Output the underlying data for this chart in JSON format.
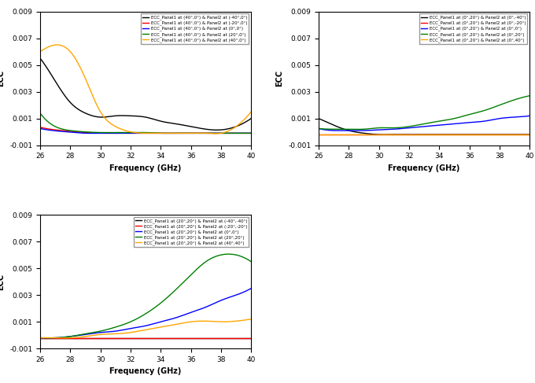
{
  "freq_dense": 200,
  "ylim": [
    -0.001,
    0.009
  ],
  "yticks": [
    -0.001,
    0.001,
    0.003,
    0.005,
    0.007,
    0.009
  ],
  "xlim": [
    26,
    40
  ],
  "xticks": [
    26,
    28,
    30,
    32,
    34,
    36,
    38,
    40
  ],
  "xlabel": "Frequency (GHz)",
  "ylabel": "ECC",
  "plot1": {
    "legend_labels": [
      "ECC_Panel1 at (40°,0°) & Panel2 at (-40°,0°)",
      "ECC_Panel1 at (40°,0°) & Panel2 at (-20°,0°)",
      "ECC_Panel1 at (40°,0°) & Panel2 at (0°,0°)",
      "ECC_Panel1 at (40°,0°) & Panel2 at (20°,0°)",
      "ECC_Panel1 at (40°,0°) & Panel2 at (40°,0°)"
    ],
    "colors": [
      "black",
      "red",
      "blue",
      "green",
      "orange"
    ],
    "knots_x": [
      [
        26,
        27,
        28,
        29,
        30,
        31,
        32,
        33,
        34,
        35,
        36,
        37,
        38,
        39,
        40
      ],
      [
        26,
        27,
        28,
        29,
        30,
        31,
        32,
        33,
        34,
        35,
        36,
        37,
        38,
        39,
        40
      ],
      [
        26,
        27,
        28,
        29,
        30,
        31,
        32,
        33,
        34,
        35,
        36,
        37,
        38,
        39,
        40
      ],
      [
        26,
        27,
        28,
        29,
        30,
        31,
        32,
        33,
        34,
        35,
        36,
        37,
        38,
        39,
        40
      ],
      [
        26,
        27,
        28,
        29,
        30,
        31,
        32,
        33,
        34,
        35,
        36,
        37,
        38,
        39,
        40
      ]
    ],
    "knots_y": [
      [
        0.0055,
        0.0038,
        0.0022,
        0.0014,
        0.0011,
        0.0012,
        0.0012,
        0.0011,
        0.0008,
        0.0006,
        0.0004,
        0.0002,
        0.00015,
        0.0004,
        0.001
      ],
      [
        0.00035,
        0.00015,
        5e-05,
        -5e-05,
        -0.0001,
        -0.0001,
        -0.0001,
        -0.0001,
        -0.0001,
        -0.0001,
        -0.0001,
        -0.0001,
        -0.0001,
        -0.0001,
        -0.0001
      ],
      [
        0.00025,
        8e-05,
        -2e-05,
        -0.0001,
        -0.0001,
        -0.0001,
        -0.0001,
        -0.0001,
        -0.0001,
        -0.0001,
        -0.0001,
        -0.0001,
        -0.0001,
        -0.0001,
        -0.0001
      ],
      [
        0.0014,
        0.0004,
        0.0001,
        0.0,
        -5e-05,
        -5e-05,
        -5e-05,
        -5e-05,
        -0.0001,
        -0.0001,
        -0.0001,
        -0.0001,
        -0.0001,
        -0.0001,
        -0.0001
      ],
      [
        0.006,
        0.0065,
        0.006,
        0.004,
        0.0015,
        0.0004,
        0.0,
        -0.0001,
        -0.0001,
        -0.0001,
        -0.0001,
        -0.0001,
        -0.0001,
        0.0004,
        0.0015
      ]
    ]
  },
  "plot2": {
    "legend_labels": [
      "ECC_Panel1 at (0°,20°) & Panel2 at (0°,-40°)",
      "ECC_Panel1 at (0°,20°) & Panel2 at (0°,-20°)",
      "ECC_Panel1 at (0°,20°) & Panel2 at (0°,0°)",
      "ECC_Panel1 at (0°,20°) & Panel2 at (0°,20°)",
      "ECC_Panel1 at (0°,20°) & Panel2 at (0°,40°)"
    ],
    "colors": [
      "black",
      "red",
      "blue",
      "green",
      "orange"
    ],
    "knots_x": [
      [
        26,
        27,
        28,
        29,
        30,
        31,
        32,
        33,
        34,
        35,
        36,
        37,
        38,
        39,
        40
      ],
      [
        26,
        27,
        28,
        29,
        30,
        31,
        32,
        33,
        34,
        35,
        36,
        37,
        38,
        39,
        40
      ],
      [
        26,
        27,
        28,
        29,
        30,
        31,
        32,
        33,
        34,
        35,
        36,
        37,
        38,
        39,
        40
      ],
      [
        26,
        27,
        28,
        29,
        30,
        31,
        32,
        33,
        34,
        35,
        36,
        37,
        38,
        39,
        40
      ],
      [
        26,
        27,
        28,
        29,
        30,
        31,
        32,
        33,
        34,
        35,
        36,
        37,
        38,
        39,
        40
      ]
    ],
    "knots_y": [
      [
        0.001,
        0.0005,
        0.0001,
        -0.0001,
        -0.0002,
        -0.0002,
        -0.0002,
        -0.0002,
        -0.0002,
        -0.0002,
        -0.0002,
        -0.0002,
        -0.0002,
        -0.0002,
        -0.0002
      ],
      [
        -0.0002,
        -0.0002,
        -0.0002,
        -0.0002,
        -0.0002,
        -0.0002,
        -0.0002,
        -0.0002,
        -0.0002,
        -0.0002,
        -0.0002,
        -0.0002,
        -0.0002,
        -0.0002,
        -0.0002
      ],
      [
        0.00025,
        0.0001,
        0.0001,
        0.0001,
        0.00015,
        0.0002,
        0.0003,
        0.0004,
        0.0005,
        0.0006,
        0.0007,
        0.0008,
        0.001,
        0.0011,
        0.0012
      ],
      [
        0.00025,
        0.0002,
        0.0002,
        0.0002,
        0.0003,
        0.0003,
        0.0004,
        0.0006,
        0.0008,
        0.001,
        0.0013,
        0.0016,
        0.002,
        0.0024,
        0.0027
      ],
      [
        -0.0002,
        -0.0002,
        -0.0002,
        -0.0002,
        -0.0002,
        -0.0002,
        -0.0002,
        -0.0002,
        -0.0002,
        -0.0002,
        -0.0002,
        -0.0002,
        -0.0002,
        -0.0002,
        -0.0002
      ]
    ]
  },
  "plot3": {
    "legend_labels": [
      "ECC_Panel1 at (20°,20°) & Panel2 at (-40°,-40°)",
      "ECC_Panel1 at (20°,20°) & Panel2 at (-20°,-20°)",
      "ECC_Panel1 at (20°,20°) & Panel2 at (0°,0°)",
      "ECC_Panel1 at (20°,20°) & Panel2 at (20°,20°)",
      "ECC_Panel1 at (20°,20°) & Panel2 at (40°,40°)"
    ],
    "colors": [
      "black",
      "red",
      "blue",
      "green",
      "orange"
    ],
    "knots_x": [
      [
        26,
        27,
        28,
        29,
        30,
        31,
        32,
        33,
        34,
        35,
        36,
        37,
        38,
        39,
        40
      ],
      [
        26,
        27,
        28,
        29,
        30,
        31,
        32,
        33,
        34,
        35,
        36,
        37,
        38,
        39,
        40
      ],
      [
        26,
        27,
        28,
        29,
        30,
        31,
        32,
        33,
        34,
        35,
        36,
        37,
        38,
        39,
        40
      ],
      [
        26,
        27,
        28,
        29,
        30,
        31,
        32,
        33,
        34,
        35,
        36,
        37,
        38,
        39,
        40
      ],
      [
        26,
        27,
        28,
        29,
        30,
        31,
        32,
        33,
        34,
        35,
        36,
        37,
        38,
        39,
        40
      ]
    ],
    "knots_y": [
      [
        -0.0002,
        -0.0002,
        -0.0002,
        -0.0002,
        -0.0002,
        -0.0002,
        -0.0002,
        -0.0002,
        -0.0002,
        -0.0002,
        -0.0002,
        -0.0002,
        -0.0002,
        -0.0002,
        -0.0002
      ],
      [
        -0.0002,
        -0.0002,
        -0.0002,
        -0.0002,
        -0.0002,
        -0.0002,
        -0.0002,
        -0.0002,
        -0.0002,
        -0.0002,
        -0.0002,
        -0.0002,
        -0.0002,
        -0.0002,
        -0.0002
      ],
      [
        -0.0002,
        -0.0002,
        -0.0001,
        5e-05,
        0.0002,
        0.0003,
        0.0005,
        0.0007,
        0.001,
        0.0013,
        0.0017,
        0.0021,
        0.0026,
        0.003,
        0.0035
      ],
      [
        -0.0002,
        -0.0002,
        -0.0001,
        0.0001,
        0.0003,
        0.0006,
        0.001,
        0.0016,
        0.0024,
        0.0034,
        0.0045,
        0.0055,
        0.006,
        0.006,
        0.0055
      ],
      [
        -0.0002,
        -0.0002,
        -0.0002,
        -0.0001,
        5e-05,
        0.0001,
        0.0002,
        0.0004,
        0.0006,
        0.0008,
        0.001,
        0.00105,
        0.001,
        0.00105,
        0.0012
      ]
    ]
  }
}
